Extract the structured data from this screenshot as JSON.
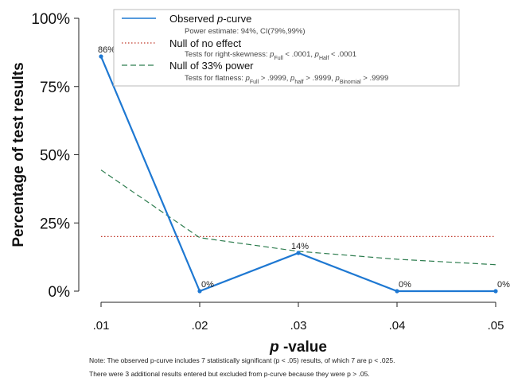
{
  "chart_data": {
    "type": "line",
    "x": [
      ".01",
      ".02",
      ".03",
      ".04",
      ".05"
    ],
    "ylabel": "Percentage of test results",
    "xlabel": "p -value",
    "ylim": [
      0,
      100
    ],
    "yticks": [
      "0%",
      "25%",
      "50%",
      "75%",
      "100%"
    ],
    "grid": false,
    "legend_position": "top",
    "series": [
      {
        "name": "Observed p-curve",
        "values": [
          86,
          0,
          14,
          0,
          0
        ],
        "data_labels": [
          "86%",
          "0%",
          "14%",
          "0%",
          "0%"
        ],
        "color": "#1e78d2",
        "style": "solid"
      },
      {
        "name": "Null of no effect",
        "values": [
          20,
          20,
          20,
          20,
          20
        ],
        "color": "#c0392b",
        "style": "dotted"
      },
      {
        "name": "Null of 33% power",
        "values": [
          44.4,
          19.6,
          14.6,
          11.7,
          9.7
        ],
        "color": "#2e7d4f",
        "style": "dashed"
      }
    ],
    "legend": [
      {
        "label_prefix": "Observed ",
        "label_em": "p",
        "label_suffix": "-curve",
        "sub": "Power estimate: 94%, CI(79%,99%)"
      },
      {
        "label": "Null of no effect",
        "sub": "Tests for right-skewness: pFull < .0001,  pHalf < .0001"
      },
      {
        "label": "Null of 33% power",
        "sub": "Tests for flatness: pFull > .9999,  phalf > .9999,  pBinomial > .9999"
      }
    ]
  },
  "note": {
    "line1": "Note: The observed p-curve includes 7 statistically significant (p < .05) results, of which 7 are p < .025.",
    "line2": "There were 3 additional results entered but excluded from p-curve because they were p > .05."
  }
}
